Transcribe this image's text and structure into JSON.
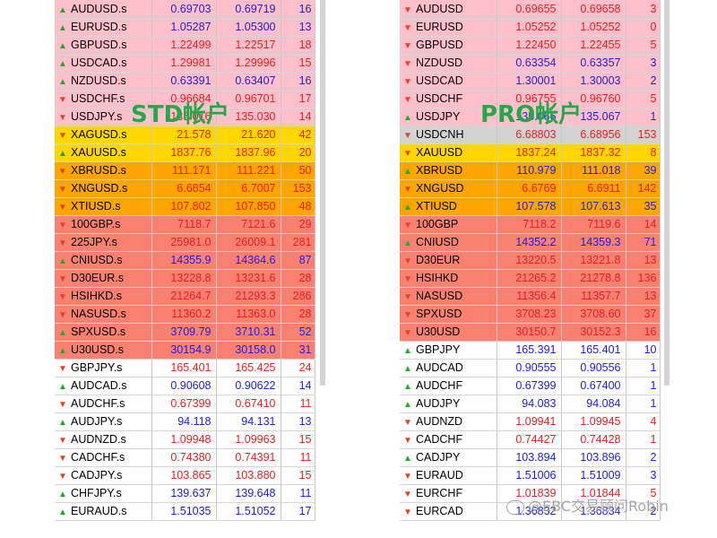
{
  "left_panel": {
    "label": "STD帐户",
    "rows": [
      {
        "symbol": "AUDUSD.s",
        "bid": "0.69703",
        "ask": "0.69719",
        "spread": "16",
        "dir": "up",
        "bg": "#ffc0cb",
        "price_color": "blue"
      },
      {
        "symbol": "EURUSD.s",
        "bid": "1.05287",
        "ask": "1.05300",
        "spread": "13",
        "dir": "up",
        "bg": "#ffc0cb",
        "price_color": "blue"
      },
      {
        "symbol": "GBPUSD.s",
        "bid": "1.22499",
        "ask": "1.22517",
        "spread": "18",
        "dir": "up",
        "bg": "#ffc0cb",
        "price_color": "red"
      },
      {
        "symbol": "USDCAD.s",
        "bid": "1.29981",
        "ask": "1.29996",
        "spread": "15",
        "dir": "up",
        "bg": "#ffc0cb",
        "price_color": "red"
      },
      {
        "symbol": "NZDUSD.s",
        "bid": "0.63391",
        "ask": "0.63407",
        "spread": "16",
        "dir": "up",
        "bg": "#ffc0cb",
        "price_color": "blue"
      },
      {
        "symbol": "USDCHF.s",
        "bid": "0.96684",
        "ask": "0.96701",
        "spread": "17",
        "dir": "down",
        "bg": "#ffc0cb",
        "price_color": "red"
      },
      {
        "symbol": "USDJPY.s",
        "bid": "135.016",
        "ask": "135.030",
        "spread": "14",
        "dir": "down",
        "bg": "#ffc0cb",
        "price_color": "red"
      },
      {
        "symbol": "XAGUSD.s",
        "bid": "21.578",
        "ask": "21.620",
        "spread": "42",
        "dir": "down",
        "bg": "#ffd700",
        "price_color": "red"
      },
      {
        "symbol": "XAUUSD.s",
        "bid": "1837.76",
        "ask": "1837.96",
        "spread": "20",
        "dir": "up",
        "bg": "#ffd700",
        "price_color": "red"
      },
      {
        "symbol": "XBRUSD.s",
        "bid": "111.171",
        "ask": "111.221",
        "spread": "50",
        "dir": "down",
        "bg": "#ffa500",
        "price_color": "red"
      },
      {
        "symbol": "XNGUSD.s",
        "bid": "6.6854",
        "ask": "6.7007",
        "spread": "153",
        "dir": "down",
        "bg": "#ffa500",
        "price_color": "red"
      },
      {
        "symbol": "XTIUSD.s",
        "bid": "107.802",
        "ask": "107.850",
        "spread": "48",
        "dir": "down",
        "bg": "#ffa500",
        "price_color": "red"
      },
      {
        "symbol": "100GBP.s",
        "bid": "7118.7",
        "ask": "7121.6",
        "spread": "29",
        "dir": "down",
        "bg": "#fa8072",
        "price_color": "red"
      },
      {
        "symbol": "225JPY.s",
        "bid": "25981.0",
        "ask": "26009.1",
        "spread": "281",
        "dir": "down",
        "bg": "#fa8072",
        "price_color": "red"
      },
      {
        "symbol": "CNIUSD.s",
        "bid": "14355.9",
        "ask": "14364.6",
        "spread": "87",
        "dir": "up",
        "bg": "#fa8072",
        "price_color": "blue"
      },
      {
        "symbol": "D30EUR.s",
        "bid": "13228.8",
        "ask": "13231.6",
        "spread": "28",
        "dir": "down",
        "bg": "#fa8072",
        "price_color": "red"
      },
      {
        "symbol": "HSIHKD.s",
        "bid": "21264.7",
        "ask": "21293.3",
        "spread": "286",
        "dir": "down",
        "bg": "#fa8072",
        "price_color": "red"
      },
      {
        "symbol": "NASUSD.s",
        "bid": "11360.2",
        "ask": "11363.0",
        "spread": "28",
        "dir": "down",
        "bg": "#fa8072",
        "price_color": "red"
      },
      {
        "symbol": "SPXUSD.s",
        "bid": "3709.79",
        "ask": "3710.31",
        "spread": "52",
        "dir": "up",
        "bg": "#fa8072",
        "price_color": "blue"
      },
      {
        "symbol": "U30USD.s",
        "bid": "30154.9",
        "ask": "30158.0",
        "spread": "31",
        "dir": "up",
        "bg": "#fa8072",
        "price_color": "blue"
      },
      {
        "symbol": "GBPJPY.s",
        "bid": "165.401",
        "ask": "165.425",
        "spread": "24",
        "dir": "down",
        "bg": "#ffffff",
        "price_color": "red"
      },
      {
        "symbol": "AUDCAD.s",
        "bid": "0.90608",
        "ask": "0.90622",
        "spread": "14",
        "dir": "up",
        "bg": "#ffffff",
        "price_color": "blue"
      },
      {
        "symbol": "AUDCHF.s",
        "bid": "0.67399",
        "ask": "0.67410",
        "spread": "11",
        "dir": "down",
        "bg": "#ffffff",
        "price_color": "red"
      },
      {
        "symbol": "AUDJPY.s",
        "bid": "94.118",
        "ask": "94.131",
        "spread": "13",
        "dir": "up",
        "bg": "#ffffff",
        "price_color": "blue"
      },
      {
        "symbol": "AUDNZD.s",
        "bid": "1.09948",
        "ask": "1.09963",
        "spread": "15",
        "dir": "down",
        "bg": "#ffffff",
        "price_color": "red"
      },
      {
        "symbol": "CADCHF.s",
        "bid": "0.74380",
        "ask": "0.74391",
        "spread": "11",
        "dir": "down",
        "bg": "#ffffff",
        "price_color": "red"
      },
      {
        "symbol": "CADJPY.s",
        "bid": "103.865",
        "ask": "103.880",
        "spread": "15",
        "dir": "down",
        "bg": "#ffffff",
        "price_color": "red"
      },
      {
        "symbol": "CHFJPY.s",
        "bid": "139.637",
        "ask": "139.648",
        "spread": "11",
        "dir": "up",
        "bg": "#ffffff",
        "price_color": "blue"
      },
      {
        "symbol": "EURAUD.s",
        "bid": "1.51035",
        "ask": "1.51052",
        "spread": "17",
        "dir": "up",
        "bg": "#ffffff",
        "price_color": "blue"
      }
    ]
  },
  "right_panel": {
    "label": "PRO帐户",
    "rows": [
      {
        "symbol": "AUDUSD",
        "bid": "0.69655",
        "ask": "0.69658",
        "spread": "3",
        "dir": "down",
        "bg": "#ffc0cb",
        "price_color": "red"
      },
      {
        "symbol": "EURUSD",
        "bid": "1.05252",
        "ask": "1.05252",
        "spread": "0",
        "dir": "down",
        "bg": "#ffc0cb",
        "price_color": "red"
      },
      {
        "symbol": "GBPUSD",
        "bid": "1.22450",
        "ask": "1.22455",
        "spread": "5",
        "dir": "down",
        "bg": "#ffc0cb",
        "price_color": "red"
      },
      {
        "symbol": "NZDUSD",
        "bid": "0.63354",
        "ask": "0.63357",
        "spread": "3",
        "dir": "down",
        "bg": "#ffc0cb",
        "price_color": "blue"
      },
      {
        "symbol": "USDCAD",
        "bid": "1.30001",
        "ask": "1.30003",
        "spread": "2",
        "dir": "down",
        "bg": "#ffc0cb",
        "price_color": "blue"
      },
      {
        "symbol": "USDCHF",
        "bid": "0.96755",
        "ask": "0.96760",
        "spread": "5",
        "dir": "down",
        "bg": "#ffc0cb",
        "price_color": "red"
      },
      {
        "symbol": "USDJPY",
        "bid": "135.066",
        "ask": "135.067",
        "spread": "1",
        "dir": "up",
        "bg": "#ffc0cb",
        "price_color": "blue"
      },
      {
        "symbol": "USDCNH",
        "bid": "6.68803",
        "ask": "6.68956",
        "spread": "153",
        "dir": "down",
        "bg": "#d3d3d3",
        "price_color": "red"
      },
      {
        "symbol": "XAUUSD",
        "bid": "1837.24",
        "ask": "1837.32",
        "spread": "8",
        "dir": "down",
        "bg": "#ffd700",
        "price_color": "red"
      },
      {
        "symbol": "XBRUSD",
        "bid": "110.979",
        "ask": "111.018",
        "spread": "39",
        "dir": "up",
        "bg": "#ffa500",
        "price_color": "blue"
      },
      {
        "symbol": "XNGUSD",
        "bid": "6.6769",
        "ask": "6.6911",
        "spread": "142",
        "dir": "down",
        "bg": "#ffa500",
        "price_color": "red"
      },
      {
        "symbol": "XTIUSD",
        "bid": "107.578",
        "ask": "107.613",
        "spread": "35",
        "dir": "up",
        "bg": "#ffa500",
        "price_color": "blue"
      },
      {
        "symbol": "100GBP",
        "bid": "7118.2",
        "ask": "7119.6",
        "spread": "14",
        "dir": "down",
        "bg": "#fa8072",
        "price_color": "red"
      },
      {
        "symbol": "CNIUSD",
        "bid": "14352.2",
        "ask": "14359.3",
        "spread": "71",
        "dir": "up",
        "bg": "#fa8072",
        "price_color": "blue"
      },
      {
        "symbol": "D30EUR",
        "bid": "13220.5",
        "ask": "13221.8",
        "spread": "13",
        "dir": "down",
        "bg": "#fa8072",
        "price_color": "red"
      },
      {
        "symbol": "HSIHKD",
        "bid": "21265.2",
        "ask": "21278.8",
        "spread": "136",
        "dir": "down",
        "bg": "#fa8072",
        "price_color": "red"
      },
      {
        "symbol": "NASUSD",
        "bid": "11356.4",
        "ask": "11357.7",
        "spread": "13",
        "dir": "down",
        "bg": "#fa8072",
        "price_color": "red"
      },
      {
        "symbol": "SPXUSD",
        "bid": "3708.23",
        "ask": "3708.60",
        "spread": "37",
        "dir": "down",
        "bg": "#fa8072",
        "price_color": "red"
      },
      {
        "symbol": "U30USD",
        "bid": "30150.7",
        "ask": "30152.3",
        "spread": "16",
        "dir": "down",
        "bg": "#fa8072",
        "price_color": "red"
      },
      {
        "symbol": "GBPJPY",
        "bid": "165.391",
        "ask": "165.401",
        "spread": "10",
        "dir": "up",
        "bg": "#ffffff",
        "price_color": "blue"
      },
      {
        "symbol": "AUDCAD",
        "bid": "0.90555",
        "ask": "0.90556",
        "spread": "1",
        "dir": "up",
        "bg": "#ffffff",
        "price_color": "blue"
      },
      {
        "symbol": "AUDCHF",
        "bid": "0.67399",
        "ask": "0.67400",
        "spread": "1",
        "dir": "up",
        "bg": "#ffffff",
        "price_color": "blue"
      },
      {
        "symbol": "AUDJPY",
        "bid": "94.083",
        "ask": "94.084",
        "spread": "1",
        "dir": "up",
        "bg": "#ffffff",
        "price_color": "blue"
      },
      {
        "symbol": "AUDNZD",
        "bid": "1.09941",
        "ask": "1.09945",
        "spread": "4",
        "dir": "down",
        "bg": "#ffffff",
        "price_color": "red"
      },
      {
        "symbol": "CADCHF",
        "bid": "0.74427",
        "ask": "0.74428",
        "spread": "1",
        "dir": "down",
        "bg": "#ffffff",
        "price_color": "red"
      },
      {
        "symbol": "CADJPY",
        "bid": "103.894",
        "ask": "103.896",
        "spread": "2",
        "dir": "up",
        "bg": "#ffffff",
        "price_color": "blue"
      },
      {
        "symbol": "EURAUD",
        "bid": "1.51006",
        "ask": "1.51009",
        "spread": "3",
        "dir": "down",
        "bg": "#ffffff",
        "price_color": "blue"
      },
      {
        "symbol": "EURCHF",
        "bid": "1.01839",
        "ask": "1.01844",
        "spread": "5",
        "dir": "down",
        "bg": "#ffffff",
        "price_color": "red"
      },
      {
        "symbol": "EURCAD",
        "bid": "1.36832",
        "ask": "1.36834",
        "spread": "2",
        "dir": "down",
        "bg": "#ffffff",
        "price_color": "blue"
      }
    ]
  },
  "watermark": "@EBC交易顾问Robin",
  "colors": {
    "up": "#22a832",
    "down": "#e0412a",
    "label": "#25a84a"
  }
}
